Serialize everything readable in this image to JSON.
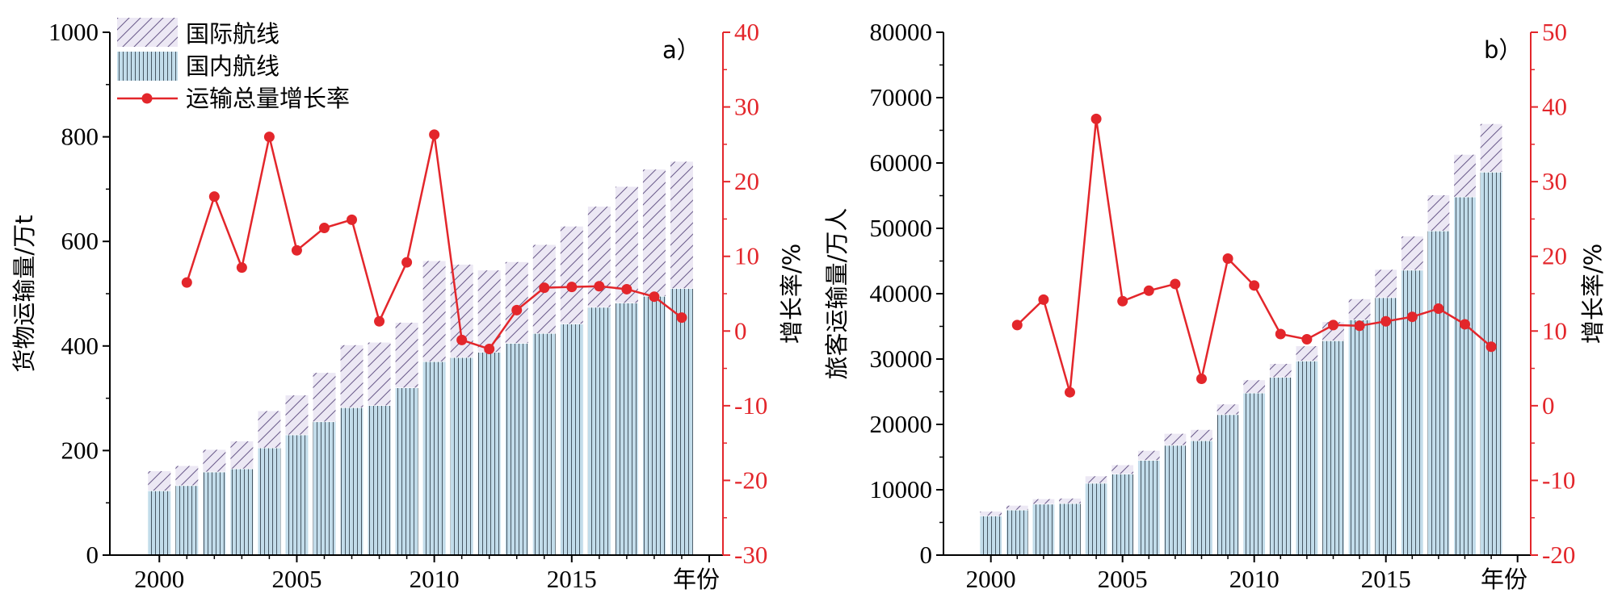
{
  "colors": {
    "domestic_fill": "#c2dcea",
    "domestic_hatch": "#3b4a55",
    "international_fill": "#ece8f4",
    "international_hatch": "#6a5a8a",
    "growth_line": "#e3262b",
    "axis": "#000000",
    "right_axis": "#e3262b"
  },
  "chart_data": [
    {
      "type": "bar",
      "panel_label": "a）",
      "stacked": true,
      "x": [
        2000,
        2001,
        2002,
        2003,
        2004,
        2005,
        2006,
        2007,
        2008,
        2009,
        2010,
        2011,
        2012,
        2013,
        2014,
        2015,
        2016,
        2017,
        2018,
        2019
      ],
      "xlabel": "年份",
      "xticks": [
        "2000",
        "2005",
        "2010",
        "2015"
      ],
      "ylabel": "货物运输量/万t",
      "ylim": [
        0,
        1000
      ],
      "yticks": [
        "0",
        "200",
        "400",
        "600",
        "800",
        "1000"
      ],
      "y2label": "增长率/%",
      "y2lim": [
        -30,
        40
      ],
      "y2ticks": [
        "-30",
        "-20",
        "-10",
        "0",
        "10",
        "20",
        "30",
        "40"
      ],
      "legend": [
        "国际航线",
        "国内航线",
        "运输总量增长率"
      ],
      "legend_position": "top-left",
      "series": [
        {
          "name": "国内航线",
          "values": [
            123,
            133,
            159,
            165,
            205,
            230,
            255,
            282,
            286,
            320,
            370,
            378,
            388,
            405,
            424,
            442,
            474,
            482,
            495,
            510
          ]
        },
        {
          "name": "国际航线",
          "values": [
            38,
            38,
            43,
            53,
            71,
            76,
            94,
            120,
            121,
            125,
            193,
            178,
            157,
            156,
            170,
            187,
            193,
            223,
            243,
            243
          ]
        },
        {
          "name": "运输总量增长率",
          "axis": "right",
          "type": "line",
          "x": [
            2001,
            2002,
            2003,
            2004,
            2005,
            2006,
            2007,
            2008,
            2009,
            2010,
            2011,
            2012,
            2013,
            2014,
            2015,
            2016,
            2017,
            2018,
            2019
          ],
          "values": [
            6.5,
            18.0,
            8.5,
            26.0,
            10.8,
            13.8,
            14.9,
            1.3,
            9.2,
            26.3,
            -1.2,
            -2.4,
            2.8,
            5.8,
            5.9,
            6.0,
            5.6,
            4.6,
            1.8
          ]
        }
      ]
    },
    {
      "type": "bar",
      "panel_label": "b）",
      "stacked": true,
      "x": [
        2000,
        2001,
        2002,
        2003,
        2004,
        2005,
        2006,
        2007,
        2008,
        2009,
        2010,
        2011,
        2012,
        2013,
        2014,
        2015,
        2016,
        2017,
        2018,
        2019
      ],
      "xlabel": "年份",
      "xticks": [
        "2000",
        "2005",
        "2010",
        "2015"
      ],
      "ylabel": "旅客运输量/万人",
      "ylim": [
        0,
        80000
      ],
      "yticks": [
        "0",
        "10000",
        "20000",
        "30000",
        "40000",
        "50000",
        "60000",
        "70000",
        "80000"
      ],
      "y2label": "增长率/%",
      "y2lim": [
        -20,
        50
      ],
      "y2ticks": [
        "-20",
        "-10",
        "0",
        "10",
        "20",
        "30",
        "40",
        "50"
      ],
      "series": [
        {
          "name": "国内航线",
          "values": [
            6000,
            6900,
            7800,
            7900,
            11000,
            12400,
            14500,
            16800,
            17500,
            21500,
            24800,
            27200,
            29700,
            32800,
            36000,
            39400,
            43600,
            49600,
            54800,
            58600
          ]
        },
        {
          "name": "国际航线",
          "values": [
            700,
            700,
            800,
            800,
            1100,
            1400,
            1500,
            1800,
            1700,
            1600,
            2000,
            2100,
            2300,
            2900,
            3200,
            4300,
            5200,
            5500,
            6500,
            7400
          ]
        },
        {
          "name": "运输总量增长率",
          "axis": "right",
          "type": "line",
          "x": [
            2001,
            2002,
            2003,
            2004,
            2005,
            2006,
            2007,
            2008,
            2009,
            2010,
            2011,
            2012,
            2013,
            2014,
            2015,
            2016,
            2017,
            2018,
            2019
          ],
          "values": [
            10.8,
            14.2,
            1.8,
            38.4,
            14.0,
            15.4,
            16.3,
            3.6,
            19.7,
            16.1,
            9.6,
            8.9,
            10.8,
            10.7,
            11.3,
            11.9,
            13.0,
            10.9,
            7.9
          ]
        }
      ]
    }
  ]
}
